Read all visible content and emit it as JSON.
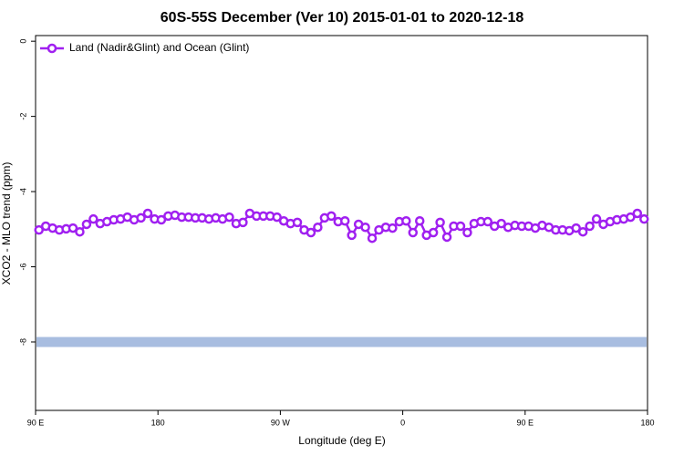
{
  "chart_data": {
    "type": "line",
    "title": "60S-55S December (Ver 10)   2015-01-01 to 2020-12-18",
    "x_label": "Longitude (deg E)",
    "y_label": "XCO2 - MLO trend (ppm)",
    "xlim": [
      90,
      540
    ],
    "xticks": [
      {
        "value": 90,
        "label": "90 E"
      },
      180,
      {
        "value": 270,
        "label": "90 W"
      },
      {
        "value": 360,
        "label": "0"
      },
      {
        "value": 450,
        "label": "90 E"
      },
      {
        "value": 540,
        "label": "180"
      }
    ],
    "ylim": [
      -9.82,
      0.15
    ],
    "yticks": [
      0,
      -2,
      -4,
      -6,
      -8
    ],
    "legend": "top-left",
    "reference_line": {
      "value": -8,
      "color": "#a8bde0"
    },
    "x": [
      92.5,
      97.5,
      102.5,
      107.5,
      112.5,
      117.5,
      122.5,
      127.5,
      132.5,
      137.5,
      142.5,
      147.5,
      152.5,
      157.5,
      162.5,
      167.5,
      172.5,
      177.5,
      182.5,
      187.5,
      192.5,
      197.5,
      202.5,
      207.5,
      212.5,
      217.5,
      222.5,
      227.5,
      232.5,
      237.5,
      242.5,
      247.5,
      252.5,
      257.5,
      262.5,
      267.5,
      272.5,
      277.5,
      282.5,
      287.5,
      292.5,
      297.5,
      302.5,
      307.5,
      312.5,
      317.5,
      322.5,
      327.5,
      332.5,
      337.5,
      342.5,
      347.5,
      352.5,
      357.5,
      362.5,
      367.5,
      372.5,
      377.5,
      382.5,
      387.5,
      392.5,
      397.5,
      402.5,
      407.5,
      412.5,
      417.5,
      422.5,
      427.5,
      432.5,
      437.5,
      442.5,
      447.5,
      452.5,
      457.5,
      462.5,
      467.5,
      472.5,
      477.5,
      482.5,
      487.5,
      492.5,
      497.5,
      502.5,
      507.5,
      512.5,
      517.5,
      522.5,
      527.5,
      532.5,
      537.5
    ],
    "series": [
      {
        "name": "Land (Nadir&Glint) and Ocean (Glint)",
        "color": "#a020f0",
        "values": [
          -5.02,
          -4.92,
          -4.97,
          -5.02,
          -4.99,
          -4.97,
          -5.07,
          -4.87,
          -4.73,
          -4.85,
          -4.8,
          -4.75,
          -4.73,
          -4.68,
          -4.75,
          -4.7,
          -4.58,
          -4.73,
          -4.75,
          -4.65,
          -4.63,
          -4.68,
          -4.68,
          -4.7,
          -4.7,
          -4.73,
          -4.7,
          -4.73,
          -4.68,
          -4.85,
          -4.82,
          -4.58,
          -4.65,
          -4.65,
          -4.65,
          -4.68,
          -4.78,
          -4.85,
          -4.82,
          -5.02,
          -5.09,
          -4.95,
          -4.7,
          -4.65,
          -4.8,
          -4.78,
          -5.16,
          -4.87,
          -4.95,
          -5.24,
          -5.02,
          -4.95,
          -4.97,
          -4.8,
          -4.78,
          -5.09,
          -4.78,
          -5.16,
          -5.09,
          -4.82,
          -5.21,
          -4.92,
          -4.92,
          -5.09,
          -4.85,
          -4.8,
          -4.8,
          -4.92,
          -4.85,
          -4.95,
          -4.9,
          -4.92,
          -4.92,
          -4.97,
          -4.9,
          -4.95,
          -5.02,
          -5.02,
          -5.04,
          -4.97,
          -5.07,
          -4.92,
          -4.73,
          -4.87,
          -4.8,
          -4.75,
          -4.73,
          -4.68,
          -4.58,
          -4.73
        ]
      }
    ]
  }
}
